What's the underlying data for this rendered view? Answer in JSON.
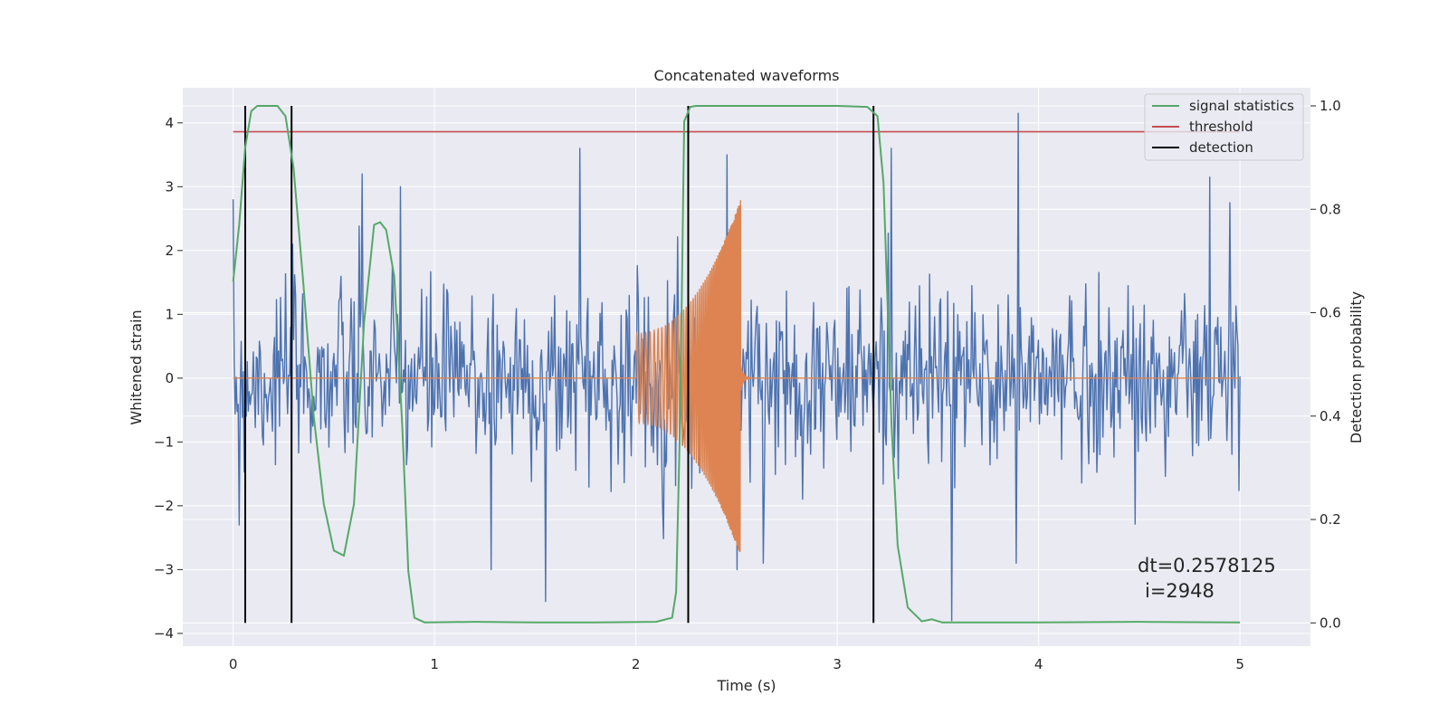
{
  "chart_data": {
    "type": "line",
    "title": "Concatenated waveforms",
    "xlabel": "Time (s)",
    "ylabel": "Whitened strain",
    "y2label": "Detection probability",
    "xlim": [
      -0.25,
      5.35
    ],
    "ylim": [
      -4.2,
      4.55
    ],
    "y2lim": [
      -0.045,
      1.035
    ],
    "x_ticks": [
      0,
      1,
      2,
      3,
      4,
      5
    ],
    "y_ticks": [
      -4,
      -3,
      -2,
      -1,
      0,
      1,
      2,
      3,
      4
    ],
    "y2_ticks": [
      0.0,
      0.2,
      0.4,
      0.6,
      0.8,
      1.0
    ],
    "x_tick_labels": [
      "0",
      "1",
      "2",
      "3",
      "4",
      "5"
    ],
    "y_tick_labels": [
      "−4",
      "−3",
      "−2",
      "−1",
      "0",
      "1",
      "2",
      "3",
      "4"
    ],
    "y2_tick_labels": [
      "0.0",
      "0.2",
      "0.4",
      "0.6",
      "0.8",
      "1.0"
    ],
    "grid": true,
    "legend_position": "top-right",
    "noise": {
      "axis": "left",
      "x_range": [
        0.0,
        5.0
      ],
      "n_points": 1000,
      "sigma": 0.72,
      "seed": 7,
      "color": "#4C72B0",
      "peaks": [
        {
          "x": 0.03,
          "y": -2.3
        },
        {
          "x": 0.64,
          "y": 3.2
        },
        {
          "x": 0.83,
          "y": 3.0
        },
        {
          "x": 1.28,
          "y": -3.0
        },
        {
          "x": 1.55,
          "y": -3.5
        },
        {
          "x": 1.72,
          "y": 3.6
        },
        {
          "x": 2.45,
          "y": 3.5
        },
        {
          "x": 2.5,
          "y": -3.0
        },
        {
          "x": 3.27,
          "y": 3.6
        },
        {
          "x": 3.57,
          "y": -3.8
        },
        {
          "x": 3.9,
          "y": 4.15
        },
        {
          "x": 4.85,
          "y": 3.15
        },
        {
          "x": 4.95,
          "y": 2.75
        }
      ]
    },
    "chirp": {
      "axis": "left",
      "color": "#DD8452",
      "start": 2.0,
      "merger": 2.52,
      "end": 5.0,
      "start_amplitude": 0.7,
      "peak_amplitude": 2.8,
      "start_frequency": 45,
      "end_frequency": 200
    },
    "series": [
      {
        "name": "signal statistics",
        "axis": "right",
        "color": "#55A868",
        "x": [
          0.0,
          0.03,
          0.06,
          0.09,
          0.12,
          0.16,
          0.22,
          0.26,
          0.3,
          0.35,
          0.4,
          0.45,
          0.5,
          0.55,
          0.6,
          0.65,
          0.7,
          0.73,
          0.76,
          0.8,
          0.84,
          0.87,
          0.9,
          0.95,
          1.2,
          1.5,
          1.8,
          2.1,
          2.18,
          2.2,
          2.22,
          2.24,
          2.27,
          2.3,
          2.6,
          3.0,
          3.15,
          3.2,
          3.23,
          3.27,
          3.3,
          3.35,
          3.42,
          3.47,
          3.52,
          4.0,
          4.5,
          5.0
        ],
        "y": [
          0.66,
          0.77,
          0.92,
          0.99,
          1.0,
          1.0,
          1.0,
          0.98,
          0.88,
          0.65,
          0.4,
          0.23,
          0.14,
          0.13,
          0.23,
          0.58,
          0.77,
          0.775,
          0.76,
          0.67,
          0.38,
          0.1,
          0.01,
          0.001,
          0.002,
          0.001,
          0.001,
          0.002,
          0.01,
          0.06,
          0.4,
          0.97,
          0.998,
          1.0,
          1.0,
          1.0,
          0.998,
          0.98,
          0.85,
          0.38,
          0.15,
          0.03,
          0.003,
          0.007,
          0.001,
          0.001,
          0.002,
          0.001
        ]
      },
      {
        "name": "threshold",
        "axis": "right",
        "color": "#C44E52",
        "x": [
          0.0,
          5.0
        ],
        "y": [
          0.95,
          0.95
        ]
      },
      {
        "name": "detection",
        "axis": "right",
        "color": "#000000",
        "x_positions": [
          0.06,
          0.29,
          2.26,
          3.18
        ],
        "y_range": [
          0.0,
          1.0
        ]
      }
    ],
    "annotation": {
      "line1": "dt=0.2578125",
      "line2": "i=2948",
      "x": 4.5,
      "y": -3.05
    }
  }
}
